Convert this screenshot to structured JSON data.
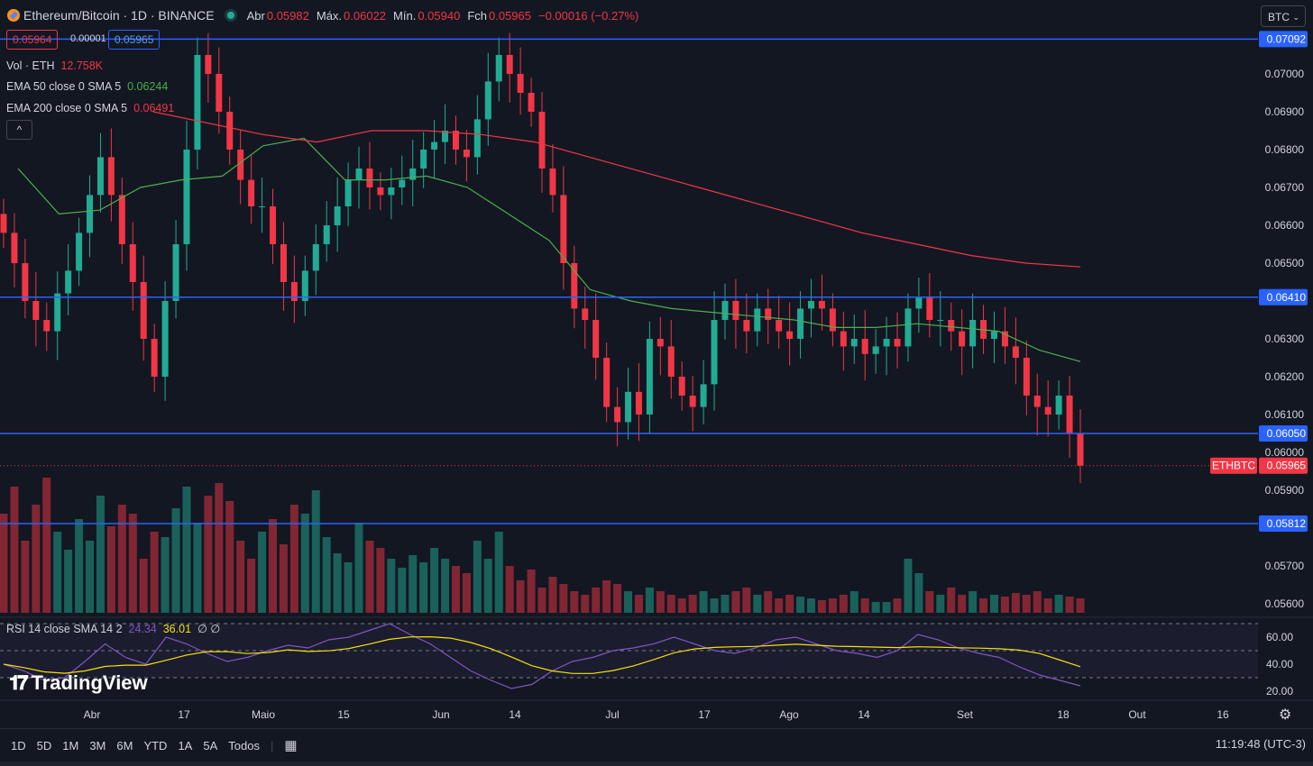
{
  "header": {
    "symbol_title": "Ethereum/Bitcoin · 1D · BINANCE",
    "open_label": "Abr",
    "open": "0.05982",
    "high_label": "Máx.",
    "high": "0.06022",
    "low_label": "Mín.",
    "low": "0.05940",
    "close_label": "Fch",
    "close": "0.05965",
    "change": "−0.00016 (−0.27%)",
    "bid": "0.05964",
    "spread": "0.00001",
    "ask": "0.05965",
    "currency_button": "BTC"
  },
  "legend": {
    "vol_name": "Vol · ETH",
    "vol_value": "12.758K",
    "ema50_name": "EMA 50 close 0 SMA 5",
    "ema50_value": "0.06244",
    "ema200_name": "EMA 200 close 0 SMA 5",
    "ema200_value": "0.06491",
    "collapse_icon": "^"
  },
  "rsi_legend": {
    "name": "RSI 14 close SMA 14 2",
    "rsi_value": "24.34",
    "sma_value": "36.01",
    "extra": "∅ ∅"
  },
  "branding": "TradingView",
  "timeframes": [
    "1D",
    "5D",
    "1M",
    "3M",
    "6M",
    "YTD",
    "1A",
    "5A",
    "Todos"
  ],
  "clock": "11:19:48 (UTC-3)",
  "colors": {
    "background": "#131722",
    "up": "#22ab94",
    "down": "#f23645",
    "ema50": "#4caf50",
    "ema200": "#f23645",
    "hline": "#2962ff",
    "rsi": "#7e57c2",
    "rsi_ma": "#f5e00b"
  },
  "chart_data": {
    "type": "candlestick",
    "symbol": "ETHBTC",
    "price_axis_ticks": [
      "0.07000",
      "0.06900",
      "0.06800",
      "0.06700",
      "0.06600",
      "0.06500",
      "0.06300",
      "0.06200",
      "0.06100",
      "0.06000",
      "0.05900",
      "0.05700",
      "0.05600"
    ],
    "x_ticks": [
      "Abr",
      "17",
      "Maio",
      "15",
      "Jun",
      "14",
      "Jul",
      "17",
      "Ago",
      "14",
      "Set",
      "18",
      "Out",
      "16"
    ],
    "horizontal_lines": [
      {
        "label": "0.07092",
        "value": 0.07092
      },
      {
        "label": "0.06410",
        "value": 0.0641
      },
      {
        "label": "0.06050",
        "value": 0.0605
      },
      {
        "label": "0.05812",
        "value": 0.05812
      }
    ],
    "last_price": {
      "label": "ETHBTC",
      "value": "0.05965"
    },
    "close_path": [
      0.0658,
      0.065,
      0.064,
      0.0635,
      0.0632,
      0.0642,
      0.0648,
      0.0658,
      0.0668,
      0.0678,
      0.0668,
      0.0655,
      0.0645,
      0.063,
      0.062,
      0.064,
      0.0655,
      0.068,
      0.0705,
      0.07,
      0.069,
      0.068,
      0.0672,
      0.0665,
      0.0665,
      0.0655,
      0.0645,
      0.064,
      0.0648,
      0.0655,
      0.066,
      0.0665,
      0.0672,
      0.0675,
      0.067,
      0.0668,
      0.067,
      0.0672,
      0.0675,
      0.068,
      0.0682,
      0.0685,
      0.068,
      0.0678,
      0.0688,
      0.0698,
      0.0705,
      0.07,
      0.0695,
      0.069,
      0.0675,
      0.0668,
      0.065,
      0.0638,
      0.0635,
      0.0625,
      0.0612,
      0.0608,
      0.0616,
      0.061,
      0.063,
      0.0628,
      0.062,
      0.0615,
      0.0612,
      0.0618,
      0.0635,
      0.064,
      0.0635,
      0.0632,
      0.0638,
      0.0635,
      0.0632,
      0.063,
      0.0638,
      0.064,
      0.0638,
      0.0632,
      0.0628,
      0.063,
      0.0626,
      0.0628,
      0.063,
      0.0628,
      0.0638,
      0.0641,
      0.0635,
      0.0635,
      0.0632,
      0.0628,
      0.0635,
      0.063,
      0.0632,
      0.0628,
      0.0625,
      0.0615,
      0.0612,
      0.061,
      0.0615,
      0.0605,
      0.05965
    ],
    "ema50_path": [
      0.0675,
      0.0663,
      0.0664,
      0.067,
      0.0672,
      0.0673,
      0.0681,
      0.0683,
      0.0672,
      0.0672,
      0.0673,
      0.067,
      0.0663,
      0.0656,
      0.0643,
      0.064,
      0.0638,
      0.0637,
      0.0636,
      0.0635,
      0.0633,
      0.0633,
      0.0634,
      0.0633,
      0.0632,
      0.0627,
      0.0624
    ],
    "ema200_path": [
      0.069,
      0.0687,
      0.0684,
      0.0682,
      0.0685,
      0.0685,
      0.0684,
      0.0682,
      0.0678,
      0.0674,
      0.067,
      0.0666,
      0.0662,
      0.0658,
      0.0655,
      0.0652,
      0.065,
      0.0649
    ],
    "volume_axis": "shared bottom pane",
    "rsi": {
      "levels": [
        60,
        40,
        20
      ],
      "axis_ticks": [
        "60.00",
        "40.00",
        "20.00"
      ],
      "overbought": 70,
      "oversold": 30,
      "last": 24.34,
      "ma_last": 36.01,
      "path": [
        40,
        35,
        28,
        30,
        42,
        55,
        45,
        40,
        60,
        55,
        48,
        42,
        45,
        50,
        54,
        52,
        58,
        60,
        65,
        70,
        62,
        55,
        45,
        35,
        28,
        22,
        25,
        35,
        42,
        45,
        50,
        52,
        55,
        60,
        55,
        50,
        48,
        52,
        58,
        60,
        55,
        50,
        48,
        45,
        50,
        62,
        58,
        52,
        48,
        45,
        38,
        32,
        28,
        24
      ]
    }
  }
}
